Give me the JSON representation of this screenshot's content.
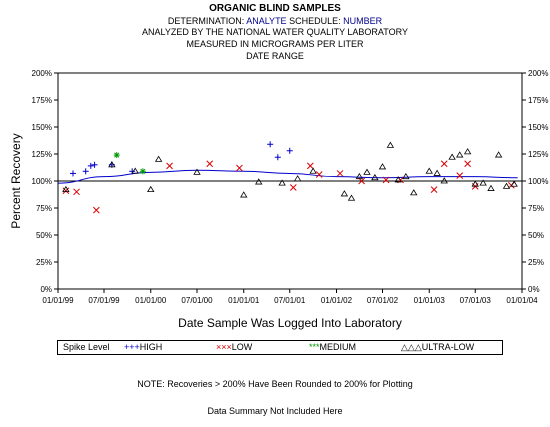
{
  "header": {
    "title": "ORGANIC BLIND SAMPLES",
    "determination_label": "DETERMINATION:",
    "determination_value": "ANALYTE",
    "schedule_label": "SCHEDULE:",
    "schedule_value": "NUMBER",
    "line2": "ANALYZED BY THE NATIONAL WATER QUALITY LABORATORY",
    "line3": "MEASURED IN MICROGRAMS PER LITER",
    "line4": "DATE RANGE"
  },
  "colors": {
    "high": "#0000cc",
    "low": "#dd0000",
    "medium": "#009900",
    "ultra_low": "#000000",
    "trend": "#0000cc",
    "accent_text": "#00008b"
  },
  "legend": {
    "title": "Spike Level",
    "high": {
      "symbol": "+++",
      "label": "HIGH"
    },
    "low": {
      "symbol": "×××",
      "label": "LOW"
    },
    "medium": {
      "symbol": "***",
      "label": "MEDIUM"
    },
    "ultra_low": {
      "symbol": "△△△",
      "label": "ULTRA-LOW"
    }
  },
  "notes": {
    "note1": "NOTE: Recoveries > 200% Have Been Rounded to 200% for Plotting",
    "note2": "Data Summary Not Included Here"
  },
  "chart_data": {
    "type": "scatter",
    "xlabel": "Date Sample Was Logged Into Laboratory",
    "ylabel": "Percent Recovery",
    "xlim": [
      "1999-01-01",
      "2004-01-01"
    ],
    "ylim": [
      0,
      200
    ],
    "x_ticks": [
      "01/01/99",
      "07/01/99",
      "01/01/00",
      "07/01/00",
      "01/01/01",
      "07/01/01",
      "01/01/02",
      "07/01/02",
      "01/01/03",
      "07/01/03",
      "01/01/04"
    ],
    "y_ticks": [
      "0%",
      "25%",
      "50%",
      "75%",
      "100%",
      "125%",
      "150%",
      "175%",
      "200%"
    ],
    "y_tick_values": [
      0,
      25,
      50,
      75,
      100,
      125,
      150,
      175,
      200
    ],
    "reference_line": 100,
    "series": [
      {
        "name": "HIGH",
        "marker": "plus",
        "points": [
          [
            "1999-03-01",
            107
          ],
          [
            "1999-04-20",
            109
          ],
          [
            "1999-05-10",
            114
          ],
          [
            "1999-05-25",
            115
          ],
          [
            "1999-08-01",
            115
          ],
          [
            "1999-10-20",
            109
          ],
          [
            "2001-04-15",
            134
          ],
          [
            "2001-05-15",
            122
          ],
          [
            "2001-07-01",
            128
          ]
        ]
      },
      {
        "name": "LOW",
        "marker": "x",
        "points": [
          [
            "1999-02-01",
            91
          ],
          [
            "1999-03-15",
            90
          ],
          [
            "1999-06-01",
            73
          ],
          [
            "2000-03-15",
            114
          ],
          [
            "2000-08-20",
            116
          ],
          [
            "2000-12-15",
            112
          ],
          [
            "2001-07-15",
            94
          ],
          [
            "2001-09-20",
            114
          ],
          [
            "2001-10-25",
            106
          ],
          [
            "2002-01-15",
            107
          ],
          [
            "2002-04-10",
            100
          ],
          [
            "2002-07-15",
            101
          ],
          [
            "2002-09-10",
            101
          ],
          [
            "2003-01-20",
            92
          ],
          [
            "2003-03-01",
            116
          ],
          [
            "2003-05-01",
            105
          ],
          [
            "2003-06-01",
            116
          ],
          [
            "2003-07-01",
            95
          ],
          [
            "2003-11-20",
            96
          ]
        ]
      },
      {
        "name": "MEDIUM",
        "marker": "star",
        "points": [
          [
            "1999-08-20",
            124
          ],
          [
            "1999-12-01",
            109
          ]
        ]
      },
      {
        "name": "ULTRA-LOW",
        "marker": "triangle",
        "points": [
          [
            "1999-02-01",
            92
          ],
          [
            "1999-08-01",
            115
          ],
          [
            "1999-11-01",
            109
          ],
          [
            "2000-01-01",
            92
          ],
          [
            "2000-02-01",
            120
          ],
          [
            "2000-07-01",
            108
          ],
          [
            "2001-01-01",
            87
          ],
          [
            "2001-03-01",
            99
          ],
          [
            "2001-06-01",
            98
          ],
          [
            "2001-08-01",
            102
          ],
          [
            "2001-10-01",
            109
          ],
          [
            "2002-02-01",
            88
          ],
          [
            "2002-03-01",
            84
          ],
          [
            "2002-04-01",
            104
          ],
          [
            "2002-05-01",
            108
          ],
          [
            "2002-06-01",
            103
          ],
          [
            "2002-07-01",
            113
          ],
          [
            "2002-08-01",
            133
          ],
          [
            "2002-09-01",
            101
          ],
          [
            "2002-10-01",
            104
          ],
          [
            "2002-11-01",
            89
          ],
          [
            "2003-01-01",
            109
          ],
          [
            "2003-02-01",
            107
          ],
          [
            "2003-03-01",
            100
          ],
          [
            "2003-04-01",
            122
          ],
          [
            "2003-05-01",
            124
          ],
          [
            "2003-06-01",
            127
          ],
          [
            "2003-07-01",
            97
          ],
          [
            "2003-08-01",
            98
          ],
          [
            "2003-09-01",
            93
          ],
          [
            "2003-10-01",
            124
          ],
          [
            "2003-11-01",
            95
          ],
          [
            "2003-12-01",
            97
          ]
        ]
      }
    ],
    "trend": {
      "name": "LOESS",
      "points": [
        [
          "1999-01-01",
          98
        ],
        [
          "1999-07-01",
          104
        ],
        [
          "2000-01-01",
          108
        ],
        [
          "2000-07-01",
          110
        ],
        [
          "2001-01-01",
          109
        ],
        [
          "2001-07-01",
          107
        ],
        [
          "2002-01-01",
          104
        ],
        [
          "2002-07-01",
          103
        ],
        [
          "2003-01-01",
          104
        ],
        [
          "2003-07-01",
          104
        ],
        [
          "2003-12-15",
          103
        ]
      ]
    }
  }
}
